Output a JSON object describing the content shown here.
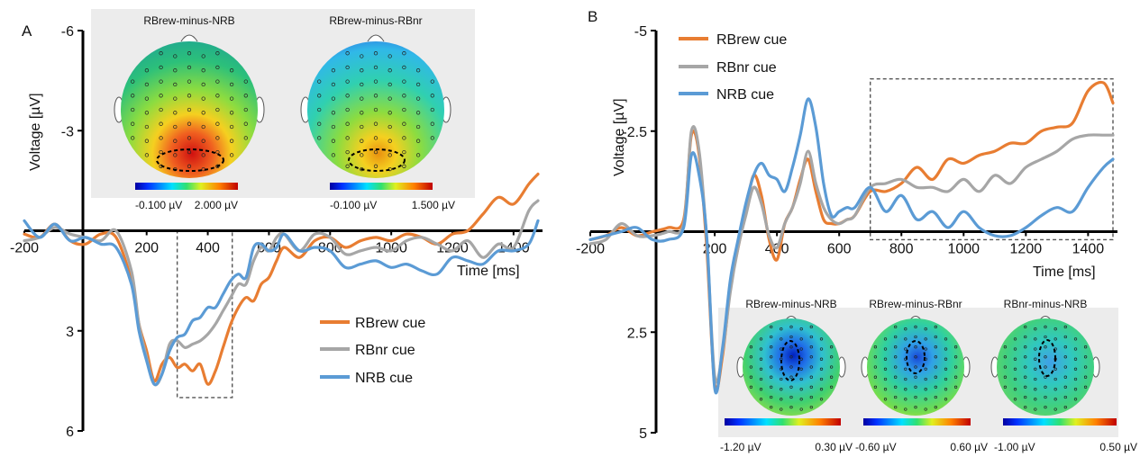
{
  "colors": {
    "rbrew": "#E87D32",
    "rbnr": "#A6A6A6",
    "nrb": "#5B9BD5",
    "axis": "#000000",
    "inset_bg": "#ECECEC"
  },
  "panels": {
    "A": {
      "letter": "A",
      "ylabel": "Voltage [µV]",
      "xlabel": "Time [ms]",
      "legend": [
        "RBrew cue",
        "RBnr cue",
        "NRB cue"
      ],
      "maps": [
        {
          "title": "RBrew-minus-NRB",
          "scale_min": "-0.100 µV",
          "scale_max": "2.000 µV"
        },
        {
          "title": "RBrew-minus-RBnr",
          "scale_min": "-0.100 µV",
          "scale_max": "1.500 µV"
        }
      ]
    },
    "B": {
      "letter": "B",
      "ylabel": "Voltage [µV]",
      "xlabel": "Time [ms]",
      "legend": [
        "RBrew cue",
        "RBnr cue",
        "NRB cue"
      ],
      "maps": [
        {
          "title": "RBrew-minus-NRB",
          "scale_min": "-1.20 µV",
          "scale_max": "0.30 µV"
        },
        {
          "title": "RBrew-minus-RBnr",
          "scale_min": "-0.60 µV",
          "scale_max": "0.60 µV"
        },
        {
          "title": "RBnr-minus-NRB",
          "scale_min": "-1.00 µV",
          "scale_max": "0.50 µV"
        }
      ]
    }
  },
  "chart_data": [
    {
      "type": "line",
      "panel": "A",
      "xlabel": "Time [ms]",
      "ylabel": "Voltage [µV]",
      "inverted_y": true,
      "xlim": [
        -200,
        1480
      ],
      "ylim": [
        -6,
        6
      ],
      "x_ticks": [
        -200,
        200,
        400,
        600,
        800,
        1000,
        1200,
        1400
      ],
      "y_ticks": [
        -6,
        -3,
        3,
        6
      ],
      "y_tick_labels": [
        "-6",
        "-3",
        "3",
        "6"
      ],
      "highlight_window_ms": [
        300,
        480
      ],
      "highlight_window_uv": [
        0,
        5
      ],
      "series": [
        {
          "name": "RBrew cue",
          "x": [
            -200,
            -150,
            -100,
            -50,
            0,
            50,
            100,
            150,
            175,
            200,
            225,
            250,
            275,
            300,
            325,
            350,
            375,
            400,
            425,
            450,
            475,
            500,
            525,
            550,
            575,
            600,
            625,
            650,
            700,
            750,
            800,
            850,
            900,
            950,
            1000,
            1050,
            1100,
            1150,
            1200,
            1250,
            1300,
            1350,
            1400,
            1450,
            1480
          ],
          "y": [
            0.1,
            0.2,
            -0.2,
            0.3,
            0.4,
            0.1,
            0.2,
            1.5,
            2.8,
            3.6,
            4.5,
            4.0,
            3.8,
            4.1,
            4.0,
            4.2,
            4.0,
            4.6,
            4.2,
            3.5,
            2.8,
            2.3,
            2.0,
            2.1,
            1.6,
            1.4,
            0.9,
            0.5,
            0.8,
            0.3,
            0.2,
            0.5,
            0.3,
            0.2,
            0.3,
            0.1,
            0.2,
            0.4,
            0.1,
            0.0,
            -0.5,
            -1.0,
            -0.8,
            -1.4,
            -1.7
          ]
        },
        {
          "name": "RBnr cue",
          "x": [
            -200,
            -150,
            -100,
            -50,
            0,
            50,
            100,
            150,
            175,
            200,
            225,
            250,
            275,
            300,
            325,
            350,
            375,
            400,
            425,
            450,
            475,
            500,
            525,
            550,
            575,
            600,
            625,
            650,
            700,
            750,
            800,
            850,
            900,
            950,
            1000,
            1050,
            1100,
            1150,
            1200,
            1250,
            1300,
            1350,
            1400,
            1450,
            1480
          ],
          "y": [
            0.3,
            0.2,
            -0.1,
            0.1,
            0.2,
            0.3,
            0.0,
            1.2,
            2.8,
            3.8,
            4.6,
            4.3,
            3.4,
            3.3,
            3.5,
            3.4,
            3.3,
            3.1,
            2.8,
            2.4,
            2.0,
            1.6,
            1.6,
            0.9,
            0.5,
            0.6,
            0.2,
            0.1,
            0.6,
            0.1,
            0.2,
            0.7,
            0.6,
            0.5,
            0.6,
            0.3,
            0.2,
            0.4,
            0.6,
            0.3,
            0.8,
            0.4,
            0.5,
            -0.6,
            -0.9
          ]
        },
        {
          "name": "NRB cue",
          "x": [
            -200,
            -150,
            -100,
            -50,
            0,
            50,
            100,
            150,
            175,
            200,
            225,
            250,
            275,
            300,
            325,
            350,
            375,
            400,
            425,
            450,
            475,
            500,
            525,
            550,
            575,
            600,
            625,
            650,
            700,
            750,
            800,
            850,
            900,
            950,
            1000,
            1050,
            1100,
            1150,
            1200,
            1250,
            1300,
            1350,
            1400,
            1450,
            1480
          ],
          "y": [
            -0.3,
            0.2,
            -0.2,
            0.3,
            0.2,
            0.4,
            0.5,
            1.6,
            3.0,
            3.9,
            4.6,
            4.3,
            3.6,
            3.2,
            3.1,
            2.7,
            2.6,
            2.3,
            2.3,
            1.9,
            1.5,
            1.3,
            1.4,
            0.5,
            0.4,
            0.6,
            0.5,
            0.1,
            0.6,
            0.5,
            0.6,
            1.1,
            1.0,
            0.9,
            1.1,
            1.0,
            1.2,
            1.3,
            0.8,
            0.9,
            1.0,
            0.6,
            0.6,
            0.4,
            -0.3
          ]
        }
      ]
    },
    {
      "type": "line",
      "panel": "B",
      "xlabel": "Time [ms]",
      "ylabel": "Voltage [µV]",
      "inverted_y": true,
      "xlim": [
        -200,
        1480
      ],
      "ylim": [
        -5,
        5
      ],
      "x_ticks": [
        -200,
        200,
        400,
        600,
        800,
        1000,
        1200,
        1400
      ],
      "y_ticks": [
        -5,
        -2.5,
        2.5,
        5
      ],
      "y_tick_labels": [
        "-5",
        "-2.5",
        "2.5",
        "5"
      ],
      "highlight_window_ms": [
        700,
        1480
      ],
      "highlight_window_uv": [
        -3.8,
        0.2
      ],
      "series": [
        {
          "name": "RBrew cue",
          "x": [
            -200,
            -150,
            -100,
            -50,
            0,
            50,
            100,
            125,
            150,
            175,
            200,
            225,
            250,
            275,
            300,
            325,
            350,
            375,
            400,
            425,
            450,
            475,
            500,
            525,
            550,
            575,
            600,
            625,
            650,
            700,
            750,
            800,
            850,
            900,
            950,
            1000,
            1050,
            1100,
            1150,
            1200,
            1250,
            1300,
            1350,
            1400,
            1450,
            1480
          ],
          "y": [
            0.2,
            0.1,
            -0.1,
            0.1,
            0.0,
            -0.1,
            -0.3,
            -2.4,
            -1.9,
            0.5,
            3.8,
            3.1,
            1.4,
            0.4,
            -0.5,
            -1.4,
            -0.9,
            0.2,
            0.7,
            -0.2,
            -0.6,
            -1.3,
            -1.8,
            -1.0,
            -0.3,
            -0.2,
            -0.2,
            -0.3,
            -0.4,
            -1.0,
            -1.0,
            -1.2,
            -1.6,
            -1.3,
            -1.8,
            -1.7,
            -1.9,
            -2.0,
            -2.2,
            -2.2,
            -2.5,
            -2.6,
            -2.7,
            -3.5,
            -3.7,
            -3.2
          ]
        },
        {
          "name": "RBnr cue",
          "x": [
            -200,
            -150,
            -100,
            -50,
            0,
            50,
            100,
            125,
            150,
            175,
            200,
            225,
            250,
            275,
            300,
            325,
            350,
            375,
            400,
            425,
            450,
            475,
            500,
            525,
            550,
            575,
            600,
            625,
            650,
            700,
            750,
            800,
            850,
            900,
            950,
            1000,
            1050,
            1100,
            1150,
            1200,
            1250,
            1300,
            1350,
            1400,
            1450,
            1480
          ],
          "y": [
            0.3,
            0.2,
            -0.2,
            0.1,
            0.1,
            0.0,
            -0.2,
            -2.5,
            -2.0,
            0.3,
            3.6,
            3.0,
            1.5,
            0.4,
            -0.4,
            -1.1,
            -0.7,
            0.1,
            0.4,
            -0.2,
            -0.6,
            -1.2,
            -2.0,
            -1.2,
            -0.6,
            -0.3,
            -0.2,
            -0.3,
            -0.4,
            -1.1,
            -1.2,
            -1.3,
            -1.1,
            -1.1,
            -1.0,
            -1.3,
            -1.0,
            -1.4,
            -1.2,
            -1.6,
            -1.8,
            -2.0,
            -2.3,
            -2.4,
            -2.4,
            -2.4
          ]
        },
        {
          "name": "NRB cue",
          "x": [
            -200,
            -150,
            -100,
            -50,
            0,
            50,
            100,
            125,
            150,
            175,
            200,
            225,
            250,
            275,
            300,
            325,
            350,
            375,
            400,
            425,
            450,
            475,
            500,
            525,
            550,
            575,
            600,
            625,
            650,
            700,
            750,
            800,
            850,
            900,
            950,
            1000,
            1050,
            1100,
            1150,
            1200,
            1250,
            1300,
            1350,
            1400,
            1450,
            1480
          ],
          "y": [
            0.2,
            0.1,
            0.0,
            -0.1,
            0.2,
            0.2,
            -0.1,
            -1.9,
            -1.4,
            0.2,
            3.9,
            2.9,
            1.2,
            0.2,
            -0.7,
            -1.4,
            -1.7,
            -1.4,
            -1.3,
            -1.0,
            -1.6,
            -2.4,
            -3.3,
            -2.6,
            -1.2,
            -0.4,
            -0.5,
            -0.6,
            -0.6,
            -1.1,
            -0.5,
            -0.9,
            -0.3,
            -0.5,
            -0.1,
            -0.5,
            -0.1,
            0.1,
            0.1,
            -0.1,
            -0.4,
            -0.6,
            -0.5,
            -1.1,
            -1.6,
            -1.8
          ]
        }
      ]
    }
  ]
}
